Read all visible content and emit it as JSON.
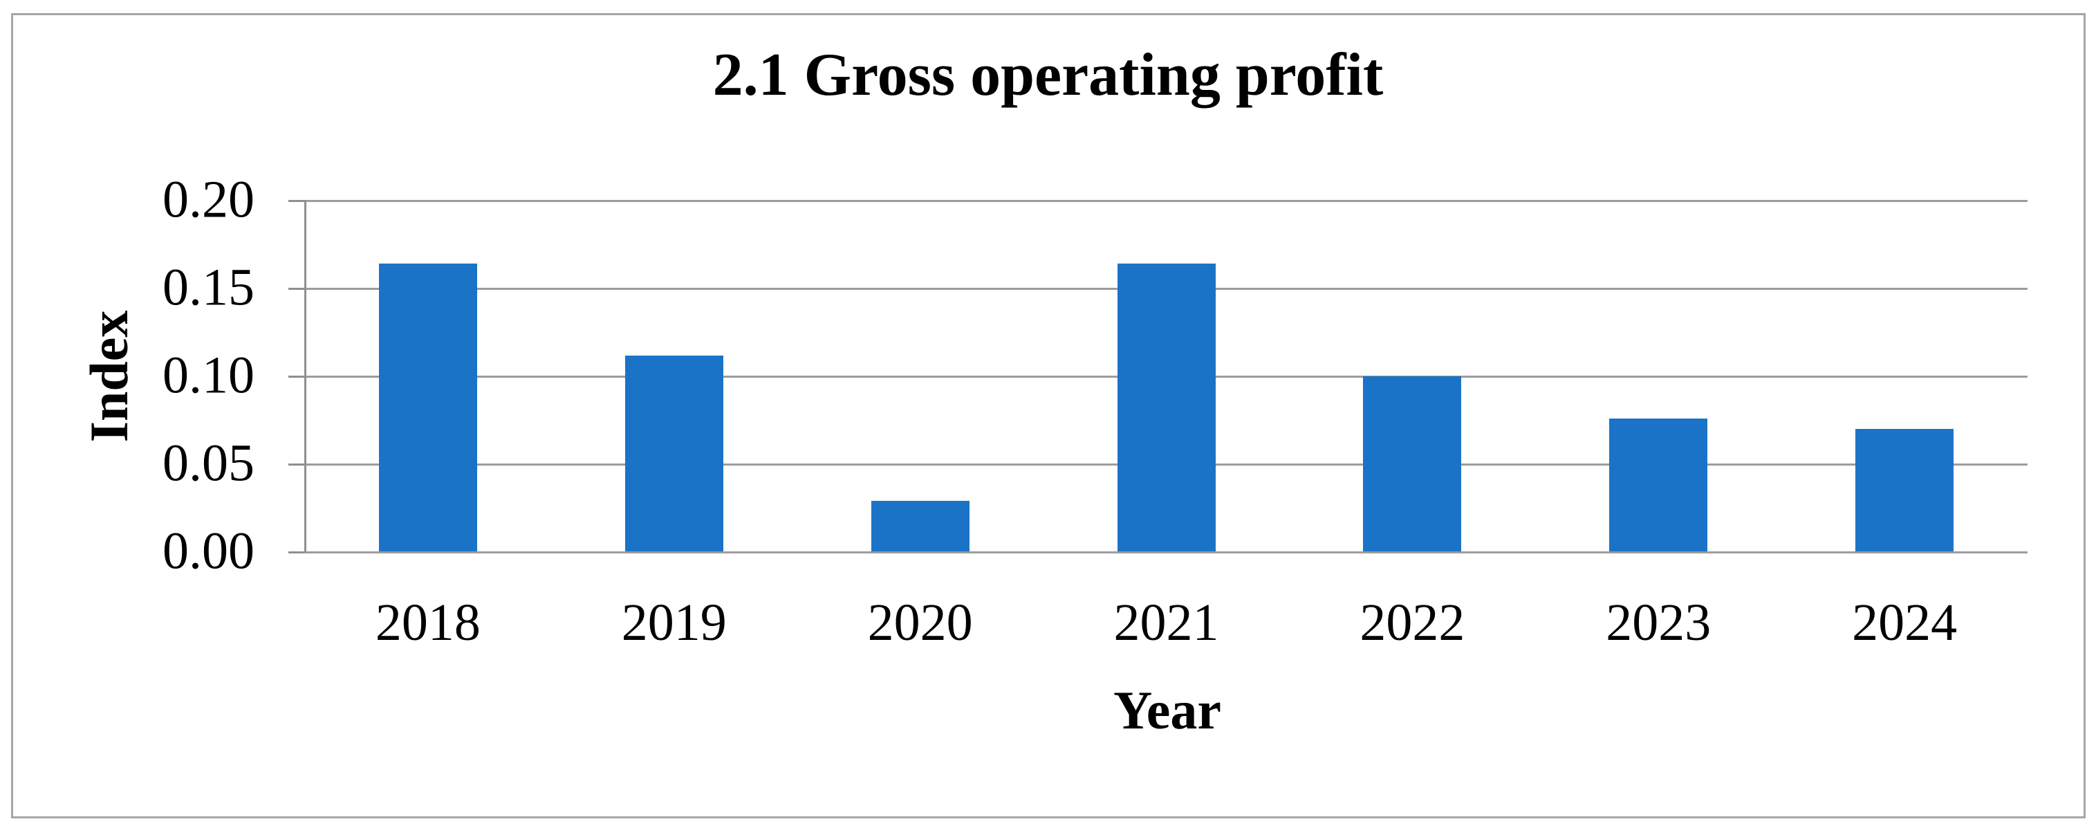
{
  "figure": {
    "background": "#FFFFFF",
    "border_color": "#A6A6A6"
  },
  "chart_data": {
    "type": "bar",
    "title": "2.1 Gross operating profit",
    "xlabel": "Year",
    "ylabel": "Index",
    "categories": [
      "2018",
      "2019",
      "2020",
      "2021",
      "2022",
      "2023",
      "2024"
    ],
    "values": [
      0.164,
      0.112,
      0.029,
      0.164,
      0.1,
      0.076,
      0.07
    ],
    "ylim": [
      0,
      0.2
    ],
    "yticks": [
      0,
      0.05,
      0.1,
      0.15,
      0.2
    ],
    "ytick_labels": [
      "0.00",
      "0.05",
      "0.10",
      "0.15",
      "0.20"
    ],
    "grid": "horizontal",
    "legend": "none",
    "bar_color": "#1B73C8",
    "gridline_color": "#9C9C9C",
    "axis_color": "#8F8F8F",
    "text_color": "#000000"
  }
}
